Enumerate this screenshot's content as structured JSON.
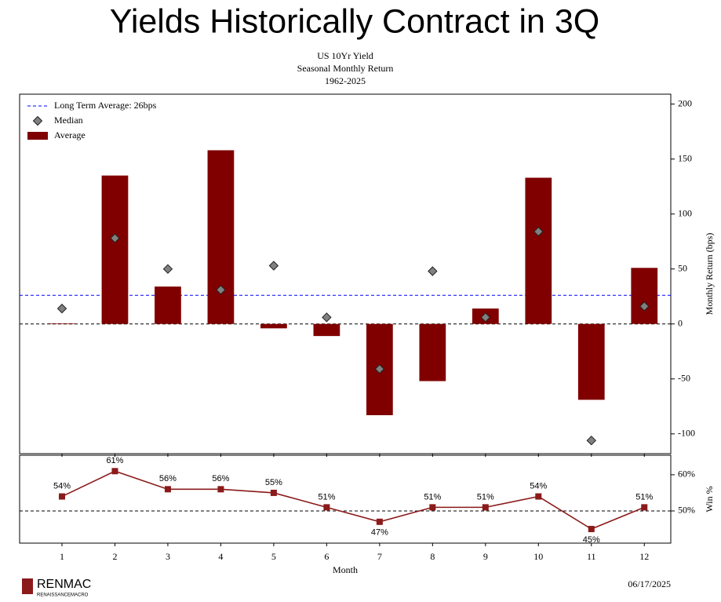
{
  "title": "Yields Historically Contract in 3Q",
  "chart_data": [
    {
      "type": "bar",
      "title": "US 10Yr Yield",
      "subtitle": [
        "Seasonal Monthly Return",
        "1962-2025"
      ],
      "x": [
        1,
        2,
        3,
        4,
        5,
        6,
        7,
        8,
        9,
        10,
        11,
        12
      ],
      "xlim": [
        0.2,
        12.5
      ],
      "ylabel": "Monthly Return (bps)",
      "ylim": [
        -118,
        209
      ],
      "yticks": [
        -100,
        -50,
        0,
        50,
        100,
        150,
        200
      ],
      "series": [
        {
          "name": "Average",
          "type": "bar",
          "color": "#800000",
          "values": [
            0.5,
            135,
            34,
            158,
            -4,
            -11,
            -83,
            -52,
            14,
            133,
            -69,
            51
          ]
        },
        {
          "name": "Median",
          "type": "scatter",
          "color": "#808080",
          "values": [
            14,
            78,
            50,
            31,
            53,
            6,
            -41,
            48,
            6,
            84,
            -106,
            16
          ]
        }
      ],
      "reference_lines": [
        {
          "name": "Long Term Average: 26bps",
          "value": 26,
          "color": "#0000ff"
        },
        {
          "value": 0,
          "color": "#000000"
        }
      ],
      "legend": "upper left"
    },
    {
      "type": "line",
      "x": [
        1,
        2,
        3,
        4,
        5,
        6,
        7,
        8,
        9,
        10,
        11,
        12
      ],
      "xlim": [
        0.2,
        12.5
      ],
      "xticks": [
        1,
        2,
        3,
        4,
        5,
        6,
        7,
        8,
        9,
        10,
        11,
        12
      ],
      "xlabel": "Month",
      "ylabel": "Win %",
      "ylim": [
        41.1,
        65.4
      ],
      "yticks": [
        {
          "value": 50,
          "label": "50%"
        },
        {
          "value": 60,
          "label": "60%"
        }
      ],
      "series": [
        {
          "color": "#8b1a1a",
          "values": [
            54,
            61,
            56,
            56,
            55,
            51,
            47,
            51,
            51,
            54,
            45,
            51
          ],
          "value_labels": [
            "54%",
            "61%",
            "56%",
            "56%",
            "55%",
            "51%",
            "47%",
            "51%",
            "51%",
            "54%",
            "45%",
            "51%"
          ]
        }
      ],
      "reference_lines": [
        {
          "value": 50,
          "color": "#000000"
        }
      ]
    }
  ],
  "footer": {
    "logo": "RENMAC",
    "logo_sub": "RENAISSANCEMACRO",
    "date": "06/17/2025"
  }
}
